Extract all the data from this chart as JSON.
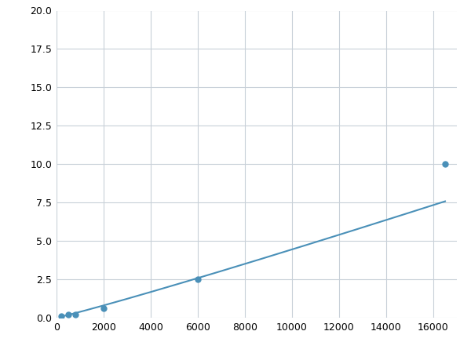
{
  "x": [
    200,
    500,
    800,
    2000,
    6000,
    16500
  ],
  "y": [
    0.1,
    0.18,
    0.22,
    0.6,
    2.5,
    10.0
  ],
  "line_color": "#4a90b8",
  "marker_color": "#4a90b8",
  "marker_size": 5,
  "line_width": 1.5,
  "xlim": [
    0,
    17000
  ],
  "ylim": [
    0,
    20.0
  ],
  "xticks": [
    0,
    2000,
    4000,
    6000,
    8000,
    10000,
    12000,
    14000,
    16000
  ],
  "yticks": [
    0.0,
    2.5,
    5.0,
    7.5,
    10.0,
    12.5,
    15.0,
    17.5,
    20.0
  ],
  "grid_color": "#c8d0d8",
  "bg_color": "#ffffff",
  "fig_bg_color": "#ffffff"
}
